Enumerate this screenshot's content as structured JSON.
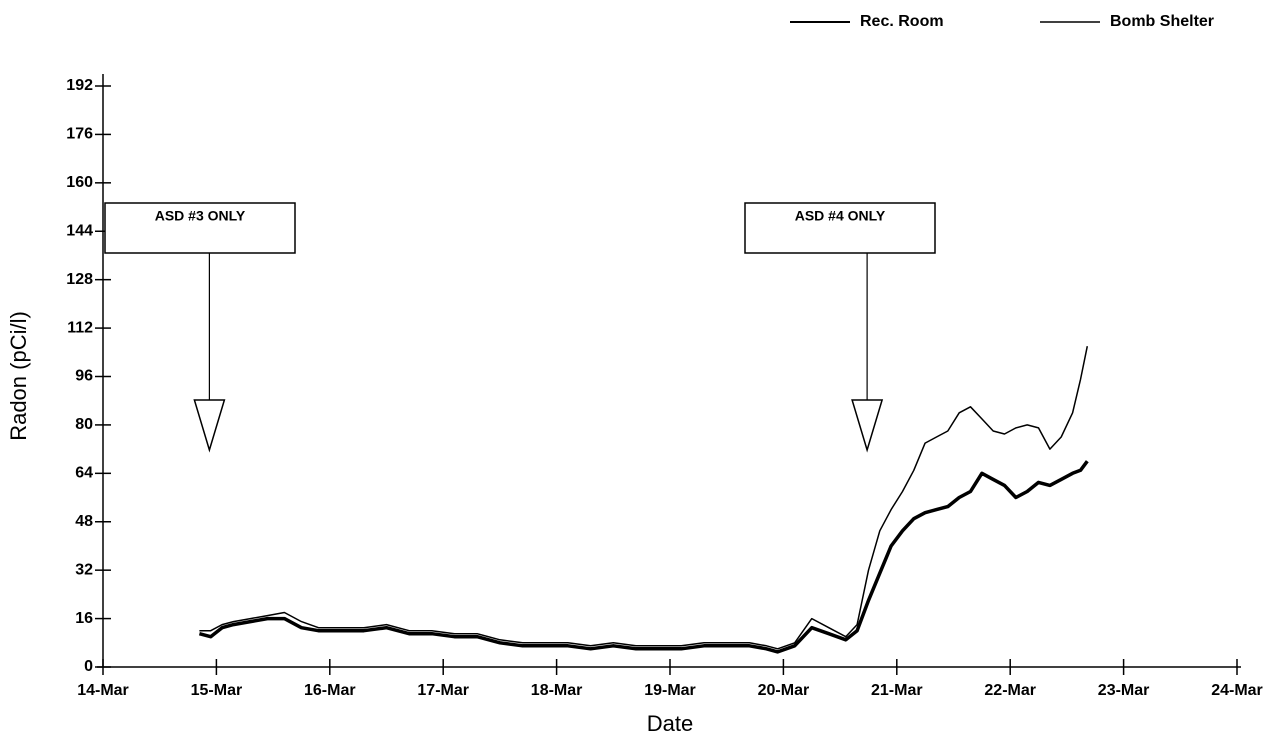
{
  "chart_data": {
    "type": "line",
    "xlabel": "Date",
    "ylabel": "Radon (pCi/l)",
    "x": [
      14.85,
      14.95,
      15.05,
      15.15,
      15.3,
      15.45,
      15.6,
      15.75,
      15.9,
      16.1,
      16.3,
      16.5,
      16.7,
      16.9,
      17.1,
      17.3,
      17.5,
      17.7,
      17.9,
      18.1,
      18.3,
      18.5,
      18.7,
      18.9,
      19.1,
      19.3,
      19.5,
      19.7,
      19.85,
      19.95,
      20.1,
      20.25,
      20.4,
      20.55,
      20.65,
      20.75,
      20.85,
      20.95,
      21.05,
      21.15,
      21.25,
      21.35,
      21.45,
      21.55,
      21.65,
      21.75,
      21.85,
      21.95,
      22.05,
      22.15,
      22.25,
      22.35,
      22.45,
      22.55,
      22.62,
      22.68
    ],
    "series": [
      {
        "name": "Rec. Room",
        "color": "#000000",
        "values": [
          11,
          10,
          13,
          14,
          15,
          16,
          16,
          13,
          12,
          12,
          12,
          13,
          11,
          11,
          10,
          10,
          8,
          7,
          7,
          7,
          6,
          7,
          6,
          6,
          6,
          7,
          7,
          7,
          6,
          5,
          7,
          13,
          11,
          9,
          12,
          22,
          31,
          40,
          45,
          49,
          51,
          52,
          53,
          56,
          58,
          64,
          62,
          60,
          56,
          58,
          61,
          60,
          62,
          64,
          65,
          68
        ]
      },
      {
        "name": "Bomb Shelter",
        "color": "#000000",
        "values": [
          12,
          12,
          14,
          15,
          16,
          17,
          18,
          15,
          13,
          13,
          13,
          14,
          12,
          12,
          11,
          11,
          9,
          8,
          8,
          8,
          7,
          8,
          7,
          7,
          7,
          8,
          8,
          8,
          7,
          6,
          8,
          16,
          13,
          10,
          14,
          32,
          45,
          52,
          58,
          65,
          74,
          76,
          78,
          84,
          86,
          82,
          78,
          77,
          79,
          80,
          79,
          72,
          76,
          84,
          95,
          106
        ]
      }
    ],
    "xlim": [
      14,
      24
    ],
    "xticks": [
      {
        "value": 14,
        "label": "14-Mar"
      },
      {
        "value": 15,
        "label": "15-Mar"
      },
      {
        "value": 16,
        "label": "16-Mar"
      },
      {
        "value": 17,
        "label": "17-Mar"
      },
      {
        "value": 18,
        "label": "18-Mar"
      },
      {
        "value": 19,
        "label": "19-Mar"
      },
      {
        "value": 20,
        "label": "20-Mar"
      },
      {
        "value": 21,
        "label": "21-Mar"
      },
      {
        "value": 22,
        "label": "22-Mar"
      },
      {
        "value": 23,
        "label": "23-Mar"
      },
      {
        "value": 24,
        "label": "24-Mar"
      }
    ],
    "ylim": [
      0,
      192
    ],
    "yticks": [
      0,
      16,
      32,
      48,
      64,
      80,
      96,
      112,
      128,
      144,
      160,
      176,
      192
    ],
    "annotations": [
      {
        "text": "ASD #3 ONLY",
        "x": 14.85
      },
      {
        "text": "ASD #4 ONLY",
        "x": 20.65
      }
    ],
    "legend": "top-right"
  }
}
